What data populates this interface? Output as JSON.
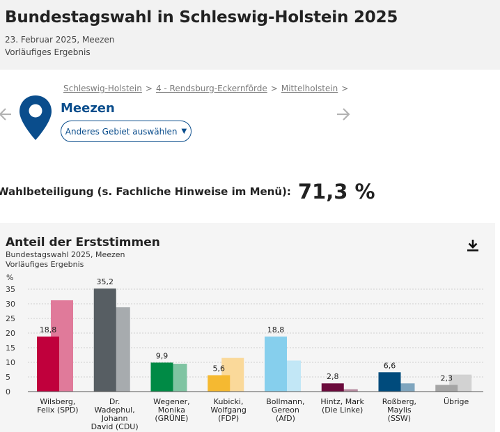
{
  "header": {
    "title": "Bundestagswahl in Schleswig-Holstein 2025",
    "date": "23. Februar 2025, Meezen",
    "status": "Vorläufiges Ergebnis"
  },
  "breadcrumb": {
    "items": [
      "Schleswig-Holstein",
      "4 - Rendsburg-Eckernförde",
      "Mittelholstein"
    ],
    "separator": ">"
  },
  "region": {
    "name": "Meezen",
    "select_label": "Anderes Gebiet auswählen",
    "caret": "▼"
  },
  "turnout": {
    "label": "Wahlbeteiligung (s. Fachliche Hinweise im Menü):",
    "value": "71,3 %"
  },
  "icons": {
    "location": "map-pin-icon",
    "prev": "arrow-left-icon",
    "next": "arrow-right-icon",
    "download": "download-icon"
  },
  "colors": {
    "accent": "#0a4d8c",
    "pin": "#0a4d8c"
  },
  "chart_data": {
    "type": "bar",
    "title": "Anteil der Erststimmen",
    "subtitle": "Bundestagswahl 2025, Meezen",
    "status": "Vorläufiges Ergebnis",
    "ylabel": "%",
    "ylim": [
      0,
      35
    ],
    "yticks": [
      0,
      5,
      10,
      15,
      20,
      25,
      30,
      35
    ],
    "grid": true,
    "categories": [
      [
        "Wilsberg,",
        "Felix (SPD)"
      ],
      [
        "Dr.",
        "Wadephul,",
        "Johann",
        "David (CDU)"
      ],
      [
        "Wegener,",
        "Monika",
        "(GRÜNE)"
      ],
      [
        "Kubicki,",
        "Wolfgang",
        "(FDP)"
      ],
      [
        "Bollmann,",
        "Gereon",
        "(AfD)"
      ],
      [
        "Hintz, Mark",
        "(Die Linke)"
      ],
      [
        "Roßberg,",
        "Maylis",
        "(SSW)"
      ],
      [
        "Übrige"
      ]
    ],
    "series": [
      {
        "values": [
          18.8,
          35.2,
          9.9,
          5.6,
          18.8,
          2.8,
          6.6,
          2.3
        ],
        "labels": [
          "18,8",
          "35,2",
          "9,9",
          "5,6",
          "18,8",
          "2,8",
          "6,6",
          "2,3"
        ],
        "colors": [
          "#c0003c",
          "#575e63",
          "#008a45",
          "#f5b931",
          "#86cfed",
          "#6b0b3c",
          "#004b7c",
          "#a5a5a5"
        ]
      },
      {
        "values": [
          31.2,
          28.8,
          9.5,
          11.5,
          10.6,
          0.8,
          2.8,
          5.8
        ],
        "colors": [
          "#e07a9a",
          "#a7abae",
          "#7fc4a2",
          "#fad99a",
          "#c2e7f6",
          "#b68a9f",
          "#7fa5be",
          "#d2d2d2"
        ]
      }
    ]
  }
}
